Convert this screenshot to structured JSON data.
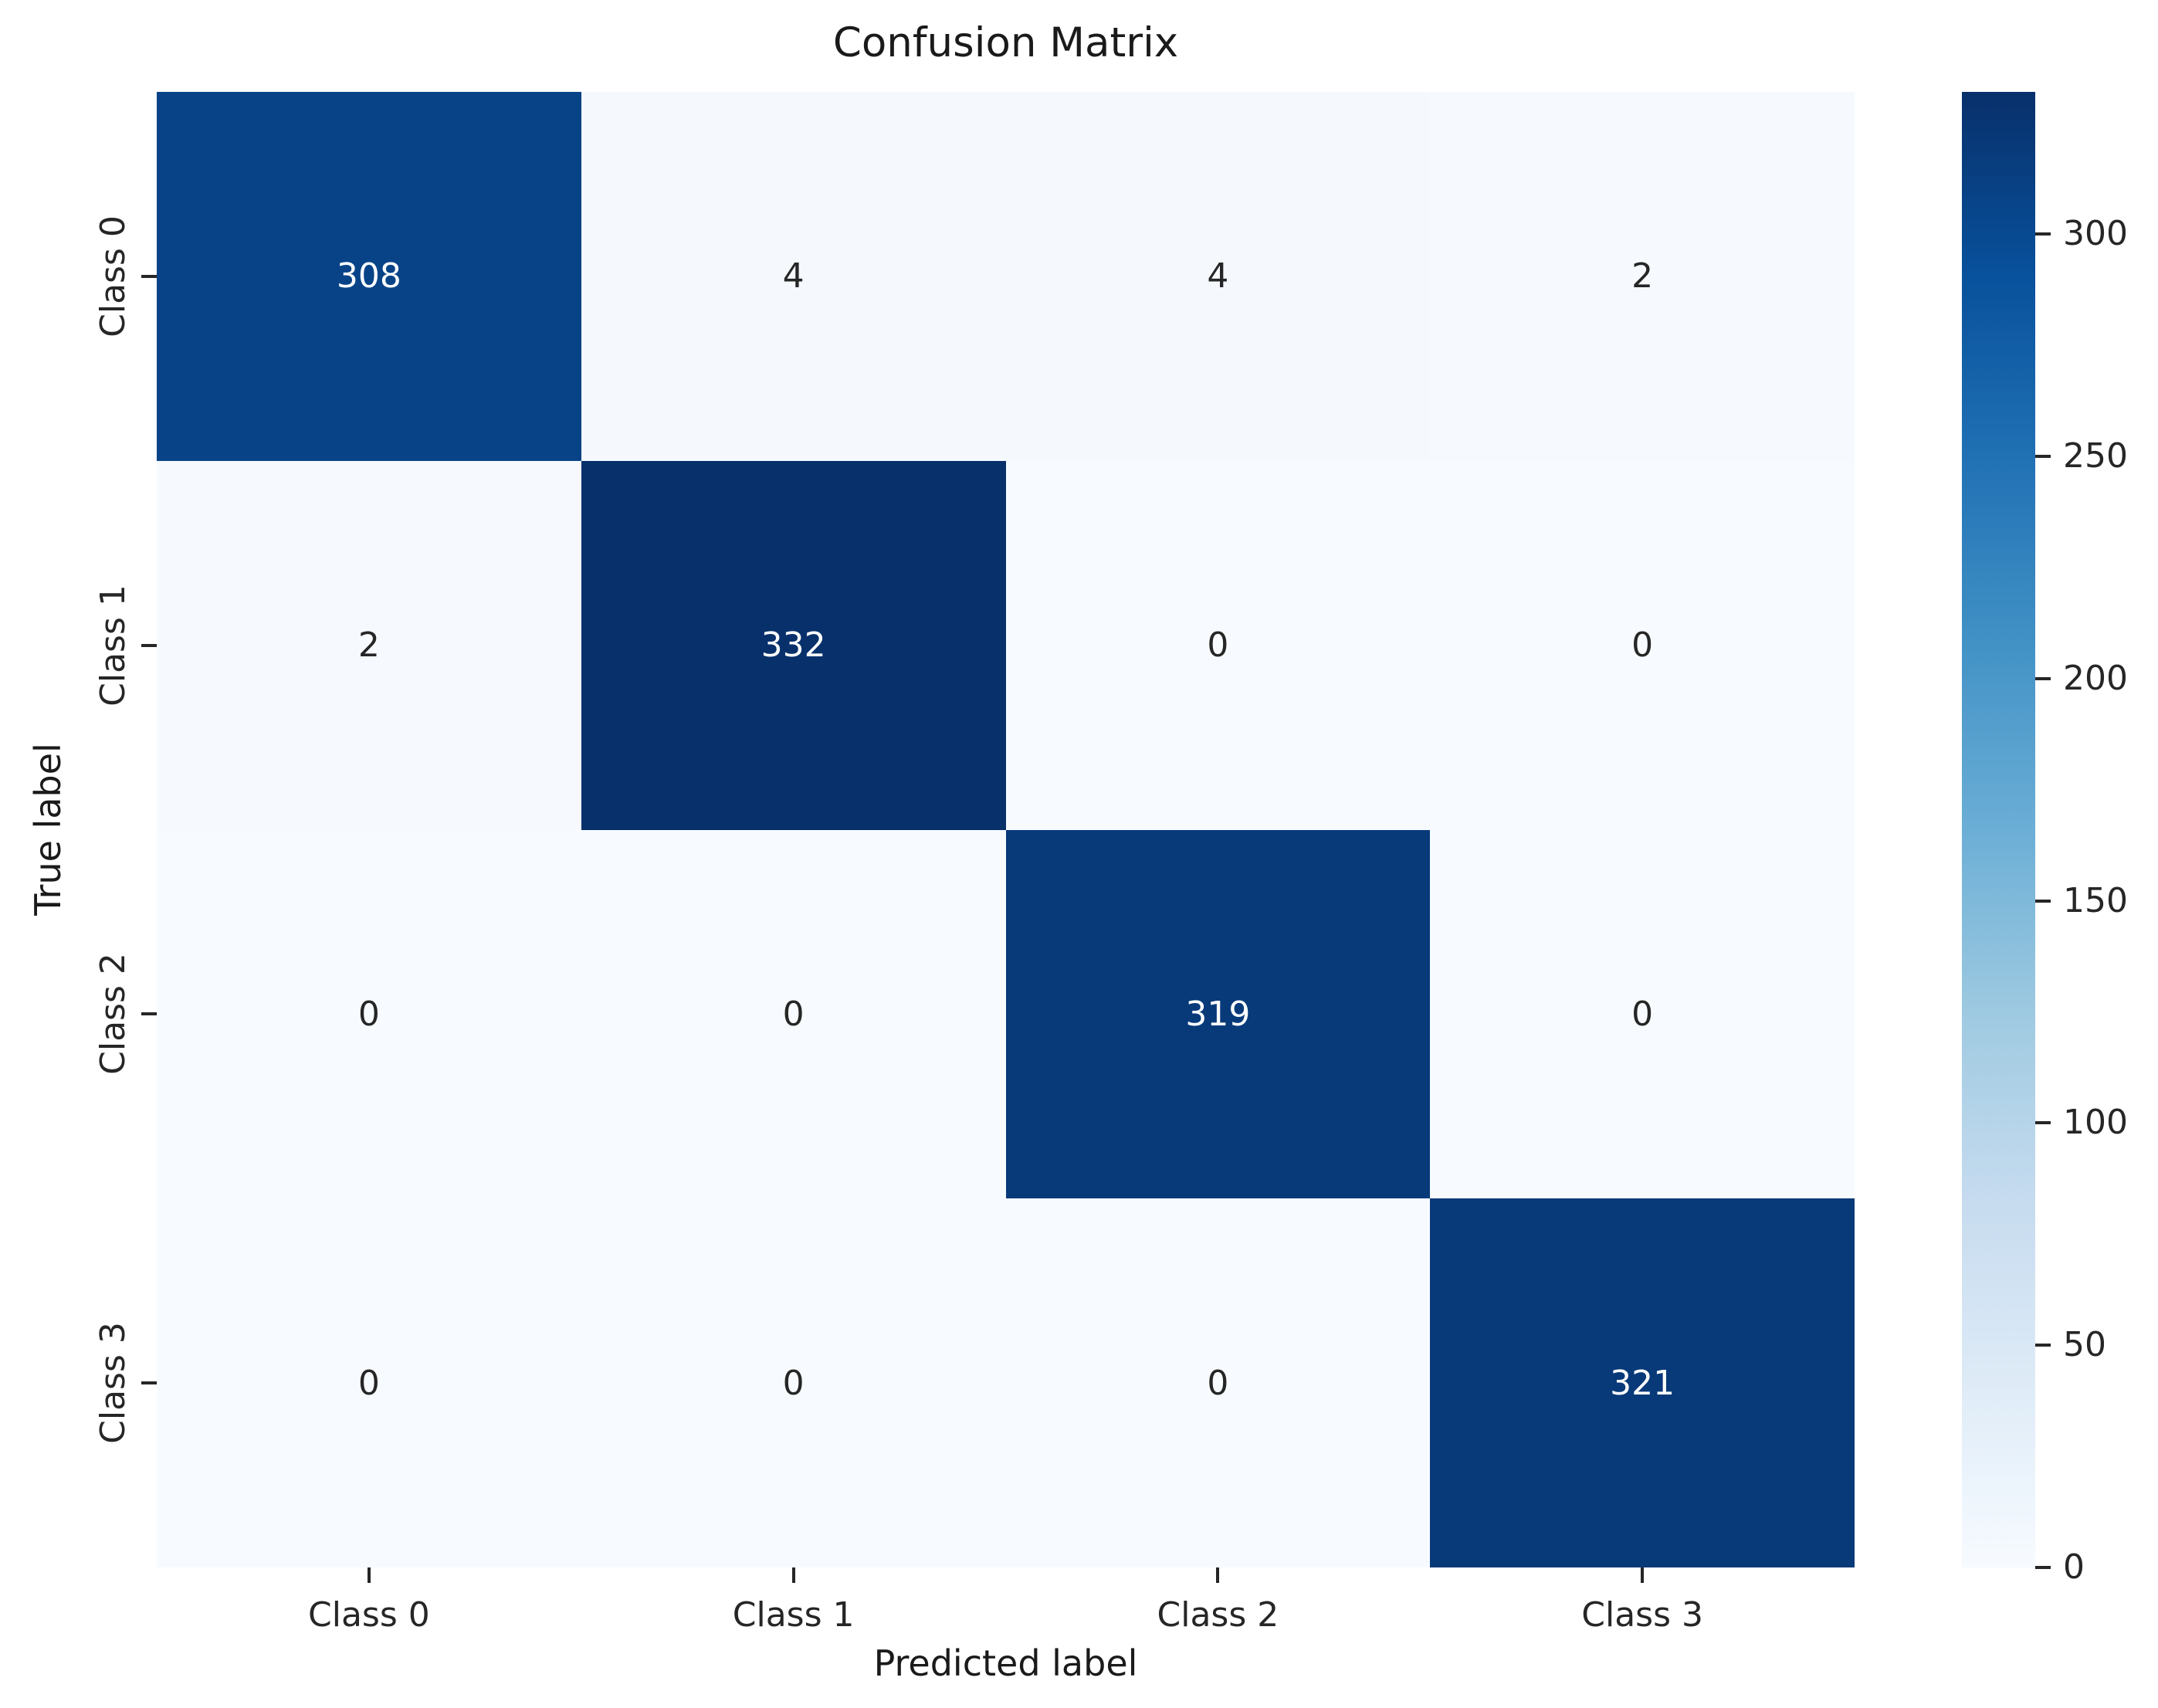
{
  "chart_data": {
    "type": "heatmap",
    "title": "Confusion Matrix",
    "xlabel": "Predicted label",
    "ylabel": "True label",
    "x_categories": [
      "Class 0",
      "Class 1",
      "Class 2",
      "Class 3"
    ],
    "y_categories": [
      "Class 0",
      "Class 1",
      "Class 2",
      "Class 3"
    ],
    "matrix": [
      [
        308,
        4,
        4,
        2
      ],
      [
        2,
        332,
        0,
        0
      ],
      [
        0,
        0,
        319,
        0
      ],
      [
        0,
        0,
        0,
        321
      ]
    ],
    "vmin": 0,
    "vmax": 332,
    "colorbar_ticks": [
      0,
      50,
      100,
      150,
      200,
      250,
      300
    ],
    "colormap": "Blues",
    "colormap_stops": [
      "#f7fbff",
      "#deebf7",
      "#c6dbef",
      "#9ecae1",
      "#6baed6",
      "#4292c6",
      "#2171b5",
      "#08519c",
      "#08306b"
    ],
    "annotation_colors": {
      "on_dark": "#ffffff",
      "on_light": "#262626"
    },
    "grid": false,
    "legend": "colorbar-right"
  }
}
